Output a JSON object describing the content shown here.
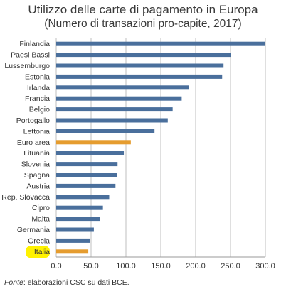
{
  "title": "Utilizzo delle carte di pagamento in Europa",
  "subtitle": "(Numero di transazioni pro-capite, 2017)",
  "source": {
    "label": "Fonte",
    "text": ": elaborazioni CSC su dati BCE."
  },
  "colors": {
    "bar": "#4a6f9c",
    "highlight": "#e59c2f",
    "marker": "#fff200",
    "grid": "#bfbfbf"
  },
  "chart_data": {
    "type": "bar",
    "orientation": "horizontal",
    "categories": [
      "Finlandia",
      "Paesi Bassi",
      "Lussemburgo",
      "Estonia",
      "Irlanda",
      "Francia",
      "Belgio",
      "Portogallo",
      "Lettonia",
      "Euro area",
      "Lituania",
      "Slovenia",
      "Spagna",
      "Austria",
      "Rep. Slovacca",
      "Cipro",
      "Malta",
      "Germania",
      "Grecia",
      "Italia"
    ],
    "values": [
      300,
      250,
      240,
      238,
      190,
      180,
      167,
      160,
      141,
      107,
      97,
      88,
      87,
      85,
      76,
      67,
      63,
      54,
      48,
      46
    ],
    "highlighted": [
      "Euro area",
      "Italia"
    ],
    "marked_label": "Italia",
    "xlim": [
      0,
      300
    ],
    "xticks": [
      "0.0",
      "50.0",
      "100.0",
      "150.0",
      "200.0",
      "250.0",
      "300.0"
    ],
    "grid": true
  }
}
